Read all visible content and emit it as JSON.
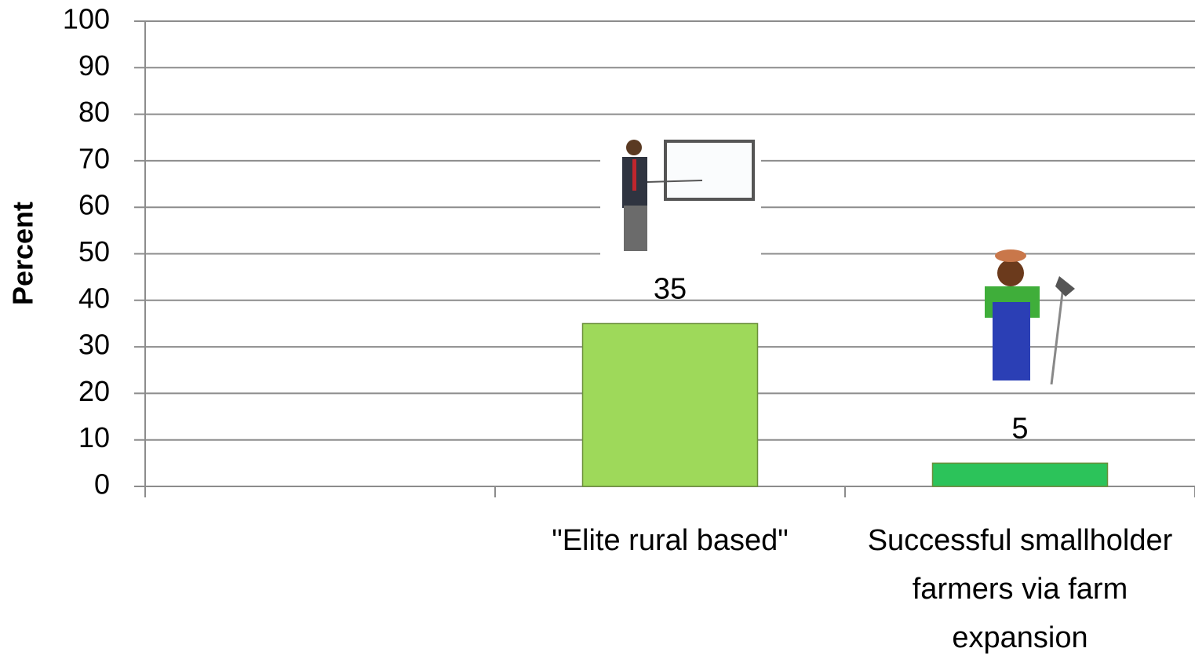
{
  "chart_data": {
    "type": "bar",
    "y_label": "Percent",
    "categories": [
      null,
      "\"Elite rural based\"",
      "Successful smallholder farmers via farm expansion"
    ],
    "values": [
      null,
      35,
      5
    ],
    "colors": [
      null,
      "#9ed95a",
      "#2cc35a"
    ],
    "ylim": [
      0,
      100
    ],
    "yticks": [
      0,
      10,
      20,
      30,
      40,
      50,
      60,
      70,
      80,
      90,
      100
    ],
    "grid": true
  }
}
